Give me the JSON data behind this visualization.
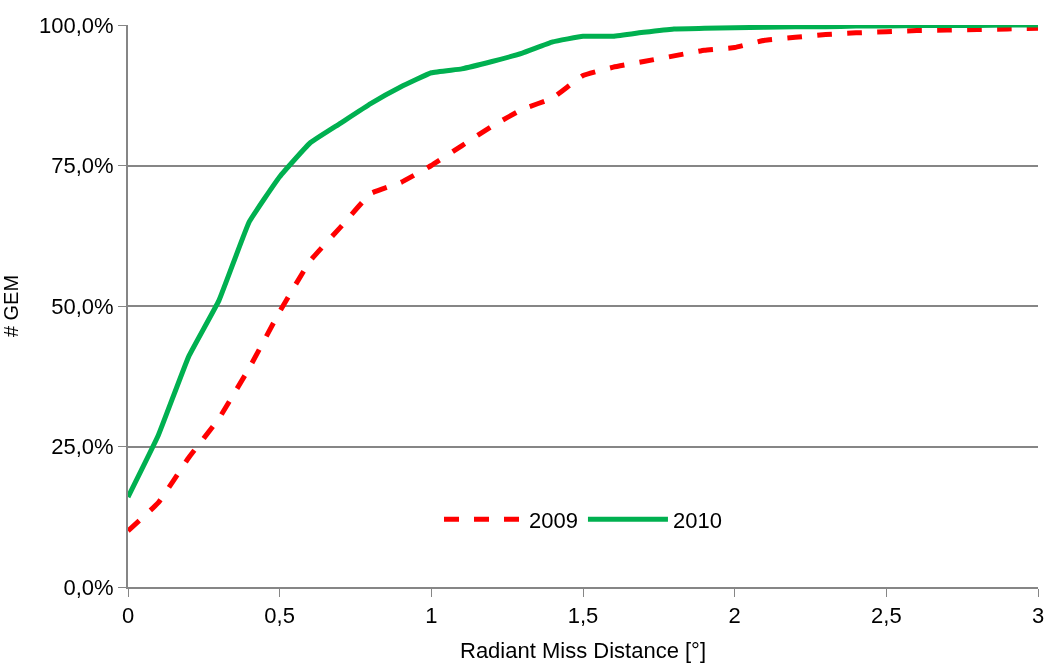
{
  "chart_data": {
    "type": "line",
    "xlabel": "Radiant Miss Distance [°]",
    "ylabel": "# GEM",
    "x": [
      0,
      0.1,
      0.2,
      0.3,
      0.4,
      0.5,
      0.6,
      0.7,
      0.8,
      0.9,
      1.0,
      1.1,
      1.2,
      1.3,
      1.4,
      1.5,
      1.6,
      1.7,
      1.8,
      1.9,
      2.0,
      2.1,
      2.2,
      2.3,
      2.4,
      2.5,
      2.6,
      2.7,
      2.8,
      2.9,
      3.0
    ],
    "series": [
      {
        "name": "2009",
        "color": "#ff0000",
        "line_style": "dashed",
        "values": [
          10,
          15,
          23,
          30,
          39,
          49,
          58,
          64,
          70,
          72,
          75,
          78.5,
          82,
          85,
          87,
          91,
          92.5,
          93.5,
          94.5,
          95.5,
          96,
          97.3,
          97.8,
          98.3,
          98.6,
          98.8,
          99,
          99.1,
          99.2,
          99.3,
          99.4
        ]
      },
      {
        "name": "2010",
        "color": "#00b050",
        "line_style": "solid",
        "values": [
          16,
          27,
          41,
          51,
          65,
          73,
          79,
          82.5,
          86,
          89,
          91.5,
          92.2,
          93.5,
          95,
          97,
          98,
          98,
          98.7,
          99.3,
          99.4,
          99.5,
          99.6,
          99.7,
          99.7,
          99.8,
          99.8,
          99.9,
          99.9,
          99.9,
          100,
          100
        ]
      }
    ],
    "xlim": [
      0,
      3
    ],
    "xticks": [
      0,
      {
        "value": 0.5,
        "label": "0,5"
      },
      1,
      {
        "value": 1.5,
        "label": "1,5"
      },
      2,
      {
        "value": 2.5,
        "label": "2,5"
      },
      3
    ],
    "ylim": [
      0,
      100
    ],
    "yticks": [
      {
        "value": 0,
        "label": "0,0%"
      },
      {
        "value": 25,
        "label": "25,0%"
      },
      {
        "value": 50,
        "label": "50,0%"
      },
      {
        "value": 75,
        "label": "75,0%"
      },
      {
        "value": 100,
        "label": "100,0%"
      }
    ],
    "grid": "y",
    "legend": "bottom",
    "marker": "none"
  }
}
